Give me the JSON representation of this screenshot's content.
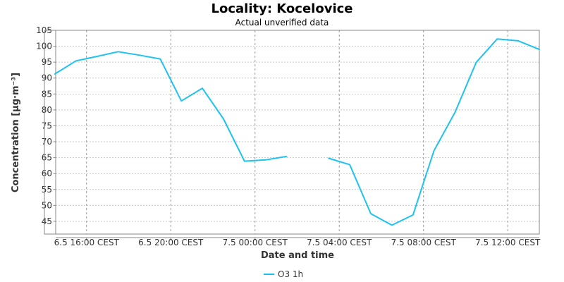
{
  "chart_data": {
    "type": "line",
    "title": "Locality: Kocelovice",
    "subtitle": "Actual unverified data",
    "xlabel": "Date and time",
    "ylabel": "Concentration [µg·m⁻³]",
    "ylim": [
      41,
      105
    ],
    "y_ticks": [
      45,
      50,
      55,
      60,
      65,
      70,
      75,
      80,
      85,
      90,
      95,
      100,
      105
    ],
    "xlim": [
      "6.5 14:00 CEST",
      "7.5 13:30 CEST"
    ],
    "x_ticks": [
      "6.5 16:00 CEST",
      "6.5 20:00 CEST",
      "7.5 00:00 CEST",
      "7.5 04:00 CEST",
      "7.5 08:00 CEST",
      "7.5 12:00 CEST"
    ],
    "grid": true,
    "legend_position": "bottom",
    "series": [
      {
        "name": "O3 1h",
        "color": "#1ec2f0",
        "points": [
          {
            "x": "6.5 14:30 CEST",
            "y": 91.3
          },
          {
            "x": "6.5 15:30 CEST",
            "y": 95.4
          },
          {
            "x": "6.5 16:30 CEST",
            "y": 96.8
          },
          {
            "x": "6.5 17:30 CEST",
            "y": 98.3
          },
          {
            "x": "6.5 18:30 CEST",
            "y": 97.2
          },
          {
            "x": "6.5 19:30 CEST",
            "y": 96.0
          },
          {
            "x": "6.5 20:30 CEST",
            "y": 82.8
          },
          {
            "x": "6.5 21:30 CEST",
            "y": 86.8
          },
          {
            "x": "6.5 22:30 CEST",
            "y": 77.2
          },
          {
            "x": "6.5 23:30 CEST",
            "y": 63.9
          },
          {
            "x": "7.5 00:30 CEST",
            "y": 64.3
          },
          {
            "x": "7.5 01:30 CEST",
            "y": 65.4
          },
          {
            "x": "7.5 02:30 CEST",
            "y": null
          },
          {
            "x": "7.5 03:30 CEST",
            "y": 64.8
          },
          {
            "x": "7.5 04:30 CEST",
            "y": 62.8
          },
          {
            "x": "7.5 05:30 CEST",
            "y": 47.4
          },
          {
            "x": "7.5 06:30 CEST",
            "y": 43.8
          },
          {
            "x": "7.5 07:30 CEST",
            "y": 47.0
          },
          {
            "x": "7.5 08:30 CEST",
            "y": 67.2
          },
          {
            "x": "7.5 09:30 CEST",
            "y": 79.3
          },
          {
            "x": "7.5 10:30 CEST",
            "y": 94.9
          },
          {
            "x": "7.5 11:30 CEST",
            "y": 102.3
          },
          {
            "x": "7.5 12:30 CEST",
            "y": 101.7
          },
          {
            "x": "7.5 13:30 CEST",
            "y": 99.0
          }
        ]
      }
    ]
  }
}
